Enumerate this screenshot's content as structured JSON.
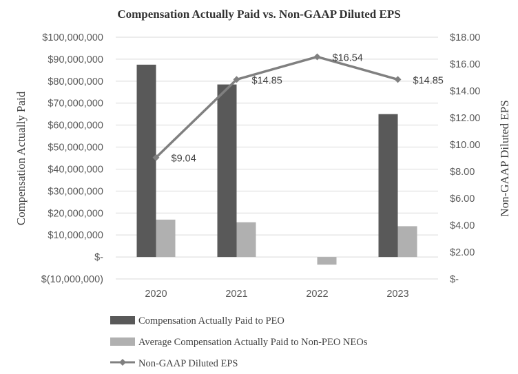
{
  "chart_data": {
    "type": "bar",
    "title": "Compensation Actually Paid vs. Non-GAAP Diluted EPS",
    "categories": [
      "2020",
      "2021",
      "2022",
      "2023"
    ],
    "xlabel": "",
    "ylabel": "Compensation Actually Paid",
    "y2label": "Non-GAAP Diluted EPS",
    "ylim": [
      -10000000,
      100000000
    ],
    "y2lim": [
      0,
      18
    ],
    "y_ticks": [
      {
        "value": 100000000,
        "label": "$100,000,000"
      },
      {
        "value": 90000000,
        "label": "$90,000,000"
      },
      {
        "value": 80000000,
        "label": "$80,000,000"
      },
      {
        "value": 70000000,
        "label": "$70,000,000"
      },
      {
        "value": 60000000,
        "label": "$60,000,000"
      },
      {
        "value": 50000000,
        "label": "$50,000,000"
      },
      {
        "value": 40000000,
        "label": "$40,000,000"
      },
      {
        "value": 30000000,
        "label": "$30,000,000"
      },
      {
        "value": 20000000,
        "label": "$20,000,000"
      },
      {
        "value": 10000000,
        "label": "$10,000,000"
      },
      {
        "value": 0,
        "label": "$-"
      },
      {
        "value": -10000000,
        "label": "$(10,000,000)"
      }
    ],
    "y2_ticks": [
      {
        "value": 18,
        "label": "$18.00"
      },
      {
        "value": 16,
        "label": "$16.00"
      },
      {
        "value": 14,
        "label": "$14.00"
      },
      {
        "value": 12,
        "label": "$12.00"
      },
      {
        "value": 10,
        "label": "$10.00"
      },
      {
        "value": 8,
        "label": "$8.00"
      },
      {
        "value": 6,
        "label": "$6.00"
      },
      {
        "value": 4,
        "label": "$4.00"
      },
      {
        "value": 2,
        "label": "$2.00"
      },
      {
        "value": 0,
        "label": "$-"
      }
    ],
    "series": [
      {
        "name": "Compensation Actually Paid to PEO",
        "kind": "bar",
        "axis": "left",
        "color": "#595959",
        "values": [
          87500000,
          78500000,
          0,
          65000000
        ]
      },
      {
        "name": "Average Compensation Actually Paid to Non-PEO NEOs",
        "kind": "bar",
        "axis": "left",
        "color": "#b0b0b0",
        "values": [
          17000000,
          15800000,
          -3500000,
          14000000
        ]
      },
      {
        "name": "Non-GAAP Diluted EPS",
        "kind": "line",
        "axis": "right",
        "color": "#808080",
        "values": [
          9.04,
          14.85,
          16.54,
          14.85
        ],
        "labels": [
          "$9.04",
          "$14.85",
          "$16.54",
          "$14.85"
        ]
      }
    ],
    "grid": true,
    "legend_position": "bottom"
  }
}
